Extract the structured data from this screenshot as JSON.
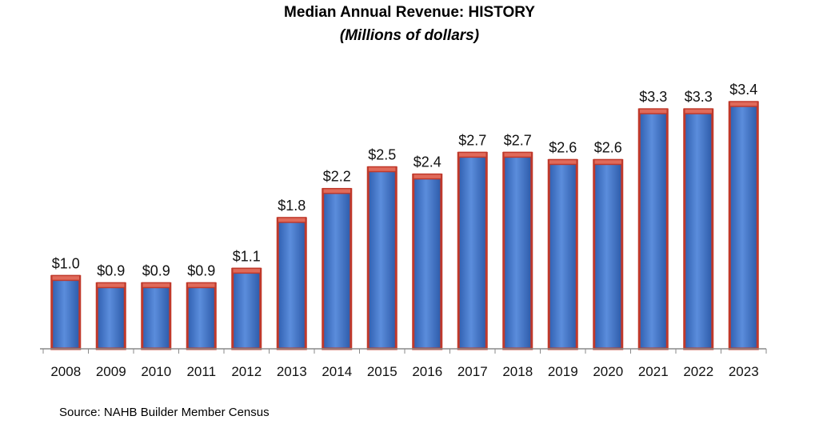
{
  "chart_data": {
    "type": "bar",
    "title": "Median Annual Revenue: HISTORY",
    "subtitle": "(Millions of dollars)",
    "categories": [
      "2008",
      "2009",
      "2010",
      "2011",
      "2012",
      "2013",
      "2014",
      "2015",
      "2016",
      "2017",
      "2018",
      "2019",
      "2020",
      "2021",
      "2022",
      "2023"
    ],
    "values": [
      1.0,
      0.9,
      0.9,
      0.9,
      1.1,
      1.8,
      2.2,
      2.5,
      2.4,
      2.7,
      2.7,
      2.6,
      2.6,
      3.3,
      3.3,
      3.4
    ],
    "data_labels": [
      "$1.0",
      "$0.9",
      "$0.9",
      "$0.9",
      "$1.1",
      "$1.8",
      "$2.2",
      "$2.5",
      "$2.4",
      "$2.7",
      "$2.7",
      "$2.6",
      "$2.6",
      "$3.3",
      "$3.3",
      "$3.4"
    ],
    "xlabel": "",
    "ylabel": "",
    "ylim": [
      0,
      3.4
    ],
    "grid": false,
    "legend": "none",
    "colors": {
      "bar_fill": "#3e73c8",
      "bar_fill_light": "#6b9ae0",
      "bar_outline": "#c0392b",
      "bar_cap": "#e06a5a",
      "axis": "#888888"
    }
  },
  "source": "Source: NAHB Builder Member Census"
}
